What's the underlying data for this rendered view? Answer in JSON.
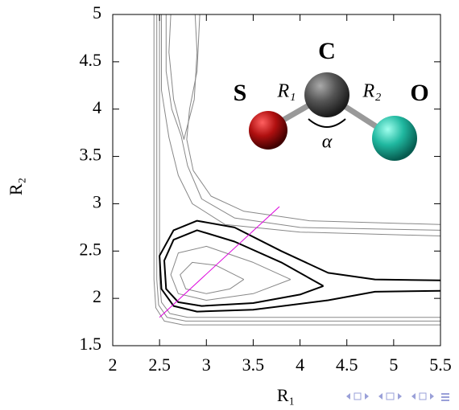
{
  "chart_data": {
    "type": "line",
    "xlabel": "R₁",
    "ylabel": "R₂",
    "xlim": [
      2,
      5.5
    ],
    "ylim": [
      1.5,
      5
    ],
    "xticks": [
      2,
      2.5,
      3,
      3.5,
      4,
      4.5,
      5,
      5.5
    ],
    "yticks": [
      1.5,
      2,
      2.5,
      3,
      3.5,
      4,
      4.5,
      5
    ],
    "series": [
      {
        "color": "#888888",
        "linewidth": 1,
        "x": [
          2.44,
          2.44,
          2.46,
          2.55,
          2.75,
          3.5,
          5.5
        ],
        "y": [
          5,
          2.2,
          1.9,
          1.76,
          1.72,
          1.72,
          1.72
        ]
      },
      {
        "color": "#888888",
        "linewidth": 1,
        "x": [
          2.47,
          2.47,
          2.49,
          2.58,
          2.78,
          3.5,
          5.5
        ],
        "y": [
          5,
          2.2,
          1.93,
          1.8,
          1.76,
          1.76,
          1.76
        ]
      },
      {
        "color": "#888888",
        "linewidth": 1,
        "x": [
          2.5,
          2.5,
          2.52,
          2.61,
          2.8,
          3.5,
          5.5
        ],
        "y": [
          5,
          2.2,
          1.96,
          1.84,
          1.8,
          1.8,
          1.8
        ]
      },
      {
        "color": "#888888",
        "linewidth": 1,
        "x": [
          2.62,
          2.6,
          2.65,
          2.76,
          2.87,
          2.9,
          2.88
        ],
        "y": [
          5,
          4.6,
          4.1,
          3.68,
          4.1,
          4.6,
          5
        ]
      },
      {
        "color": "#888888",
        "linewidth": 1,
        "x": [
          2.57,
          2.57,
          2.63,
          2.73,
          2.8,
          2.95,
          3.3,
          4,
          5.5
        ],
        "y": [
          5,
          4.4,
          4.0,
          3.72,
          3.4,
          3.05,
          2.85,
          2.75,
          2.72
        ]
      },
      {
        "color": "#888888",
        "linewidth": 1,
        "x": [
          2.52,
          2.52,
          2.6,
          2.7,
          2.85,
          3.2,
          4,
          5.5
        ],
        "y": [
          5,
          4.2,
          3.7,
          3.3,
          3.0,
          2.78,
          2.7,
          2.66
        ]
      },
      {
        "color": "#888888",
        "linewidth": 1,
        "x": [
          2.93,
          2.9,
          2.82,
          2.79,
          2.86,
          3.05,
          3.4,
          4.1,
          5.5
        ],
        "y": [
          5,
          4.4,
          4.0,
          3.68,
          3.35,
          3.08,
          2.92,
          2.82,
          2.78
        ]
      },
      {
        "color": "#000000",
        "linewidth": 2,
        "x": [
          5.5,
          4.8,
          4.3,
          3.8,
          3.3,
          2.9,
          2.65,
          2.5,
          2.52,
          2.65,
          2.9,
          3.5,
          4.3,
          4.8,
          5.5
        ],
        "y": [
          2.19,
          2.2,
          2.27,
          2.5,
          2.75,
          2.82,
          2.72,
          2.45,
          2.1,
          1.92,
          1.86,
          1.88,
          1.98,
          2.07,
          2.08
        ]
      },
      {
        "color": "#000000",
        "linewidth": 2,
        "x": [
          4.25,
          3.8,
          3.3,
          2.9,
          2.65,
          2.55,
          2.57,
          2.7,
          2.95,
          3.5,
          4,
          4.25
        ],
        "y": [
          2.13,
          2.38,
          2.6,
          2.72,
          2.62,
          2.4,
          2.1,
          1.96,
          1.92,
          1.95,
          2.04,
          2.13
        ]
      },
      {
        "color": "#888888",
        "linewidth": 1,
        "x": [
          3.9,
          3.5,
          3.0,
          2.7,
          2.62,
          2.7,
          3.0,
          3.5,
          3.9
        ],
        "y": [
          2.2,
          2.38,
          2.55,
          2.48,
          2.25,
          2.05,
          1.98,
          2.05,
          2.2
        ]
      },
      {
        "color": "#888888",
        "linewidth": 1,
        "x": [
          3.4,
          3.1,
          2.85,
          2.72,
          2.78,
          3.0,
          3.25,
          3.4
        ],
        "y": [
          2.2,
          2.35,
          2.38,
          2.25,
          2.1,
          2.05,
          2.1,
          2.2
        ]
      },
      {
        "color": "#dd00dd",
        "linewidth": 1,
        "x": [
          2.5,
          3.78
        ],
        "y": [
          1.8,
          2.97
        ]
      }
    ],
    "annotations": {
      "atom_s": "S",
      "atom_c": "C",
      "atom_o": "O",
      "bond_1": "R₁",
      "bond_2": "R₂",
      "angle": "α"
    }
  }
}
